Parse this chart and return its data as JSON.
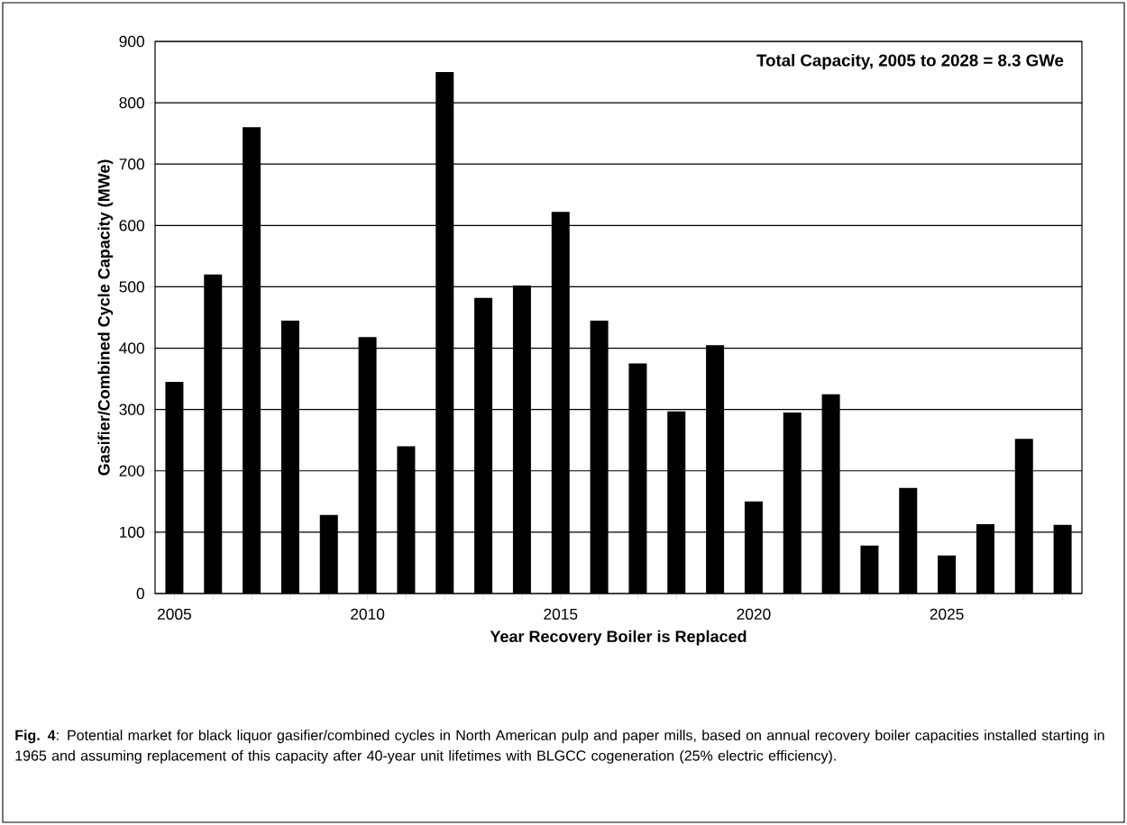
{
  "chart_data": {
    "type": "bar",
    "x": [
      2005,
      2006,
      2007,
      2008,
      2009,
      2010,
      2011,
      2012,
      2013,
      2014,
      2015,
      2016,
      2017,
      2018,
      2019,
      2020,
      2021,
      2022,
      2023,
      2024,
      2025,
      2026,
      2027,
      2028
    ],
    "values": [
      345,
      520,
      760,
      445,
      128,
      418,
      240,
      850,
      482,
      502,
      622,
      445,
      375,
      297,
      405,
      150,
      295,
      325,
      78,
      172,
      62,
      113,
      252,
      112
    ],
    "color": "#000000",
    "xlabel": "Year Recovery Boiler is Replaced",
    "ylabel": "Gasifier/Combined Cycle Capacity (MWe)",
    "xlim": [
      2004.5,
      2028.5
    ],
    "xticks": [
      2005,
      {
        "value": 2006,
        "label": null
      },
      {
        "value": 2007,
        "label": null
      },
      {
        "value": 2008,
        "label": null
      },
      {
        "value": 2009,
        "label": null
      },
      2010,
      {
        "value": 2011,
        "label": null
      },
      {
        "value": 2012,
        "label": null
      },
      {
        "value": 2013,
        "label": null
      },
      {
        "value": 2014,
        "label": null
      },
      2015,
      {
        "value": 2016,
        "label": null
      },
      {
        "value": 2017,
        "label": null
      },
      {
        "value": 2018,
        "label": null
      },
      {
        "value": 2019,
        "label": null
      },
      2020,
      {
        "value": 2021,
        "label": null
      },
      {
        "value": 2022,
        "label": null
      },
      {
        "value": 2023,
        "label": null
      },
      {
        "value": 2024,
        "label": null
      },
      2025,
      {
        "value": 2026,
        "label": null
      },
      {
        "value": 2027,
        "label": null
      },
      {
        "value": 2028,
        "label": null
      }
    ],
    "ylim": [
      0,
      900
    ],
    "yticks": [
      0,
      100,
      200,
      300,
      400,
      500,
      600,
      700,
      800,
      900
    ],
    "grid": "y",
    "annotations": [
      "Total Capacity, 2005 to 2028 = 8.3 GWe",
      "**Fig. 4**: Potential market for black liquor gasifier/combined cycles in North American pulp and paper mills, based on annual recovery boiler capacities installed starting in 1965 and assuming replacement of this capacity after 40-year unit lifetimes with BLGCC cogeneration (25% electric efficiency)."
    ]
  }
}
